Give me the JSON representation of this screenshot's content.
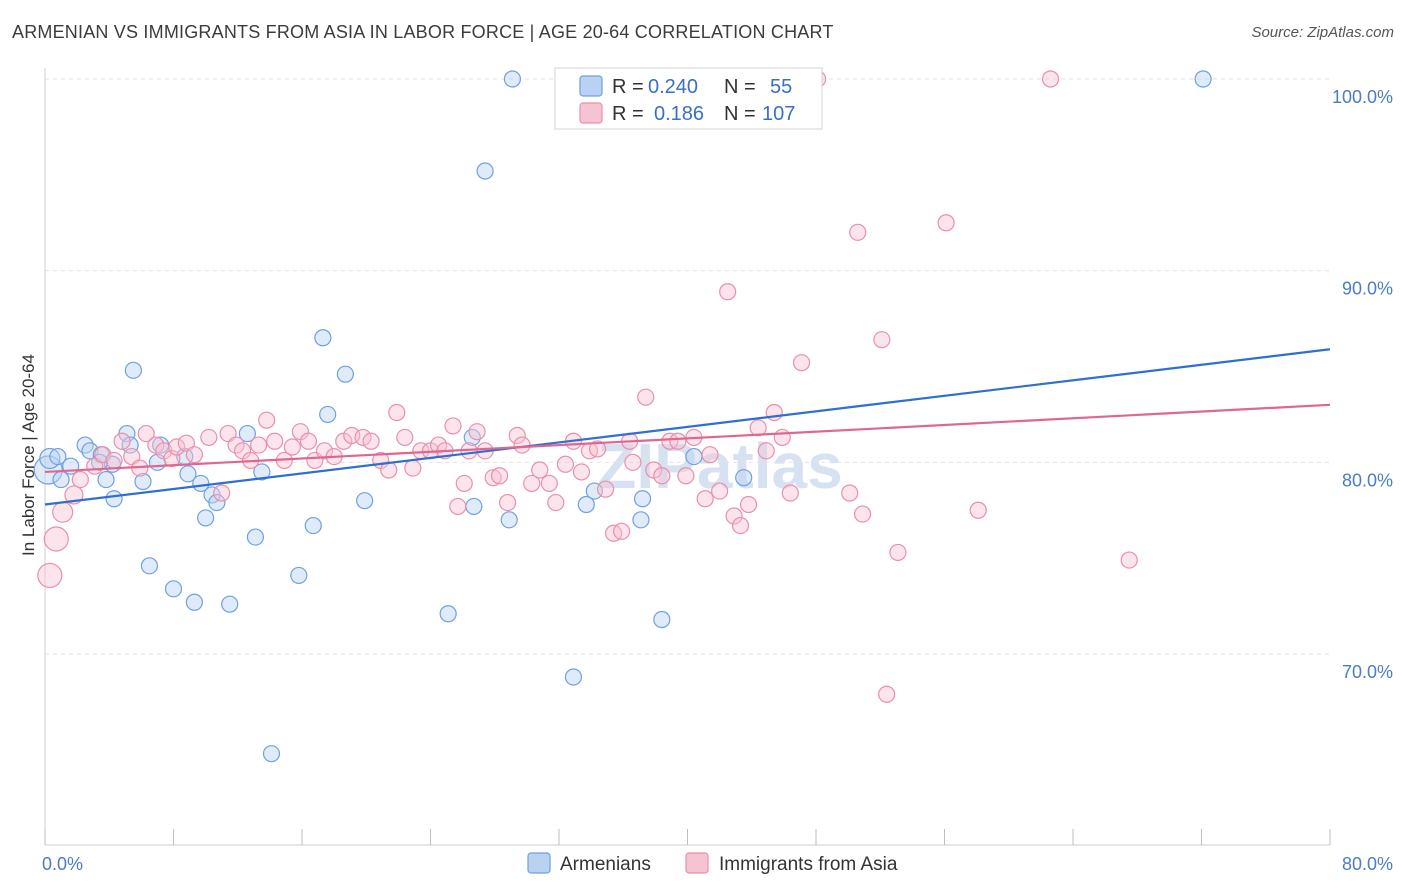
{
  "title": "ARMENIAN VS IMMIGRANTS FROM ASIA IN LABOR FORCE | AGE 20-64 CORRELATION CHART",
  "source": "Source: ZipAtlas.com",
  "watermark": "ZIPatlas",
  "chart_data": {
    "type": "scatter",
    "ylabel": "In Labor Force | Age 20-64",
    "xlim": [
      0,
      80
    ],
    "ylim": [
      60.5,
      102
    ],
    "x_tick_labels": [
      {
        "value": 0,
        "label": "0.0%"
      },
      {
        "value": 80,
        "label": "80.0%"
      }
    ],
    "y_tick_labels": [
      {
        "value": 100,
        "label": "100.0%"
      },
      {
        "value": 90,
        "label": "90.0%"
      },
      {
        "value": 80,
        "label": "80.0%"
      },
      {
        "value": 70,
        "label": "70.0%"
      }
    ],
    "grid": true,
    "legend_position": "top-center",
    "series": [
      {
        "name": "Armenians",
        "color": "#6fa0e0",
        "fill": "#b9d2f2",
        "line_color": "#2f6fd1",
        "R": "0.240",
        "N": "55",
        "trend": [
          [
            0,
            77.8
          ],
          [
            80,
            85.9
          ]
        ],
        "points": [
          [
            0.2,
            79.6,
            14
          ],
          [
            0.3,
            80.2,
            10
          ],
          [
            0.8,
            80.3,
            8
          ],
          [
            1.0,
            79.1,
            8
          ],
          [
            1.6,
            79.8,
            8
          ],
          [
            2.5,
            80.9,
            8
          ],
          [
            2.8,
            80.6,
            8
          ],
          [
            3.5,
            80.4,
            8
          ],
          [
            3.8,
            79.1,
            8
          ],
          [
            4.2,
            79.9,
            8
          ],
          [
            3.4,
            80.0,
            8
          ],
          [
            4.3,
            78.1,
            8
          ],
          [
            5.1,
            81.5,
            8
          ],
          [
            5.3,
            80.9,
            8
          ],
          [
            5.5,
            84.8,
            8
          ],
          [
            6.1,
            79.0,
            8
          ],
          [
            6.5,
            74.6,
            8
          ],
          [
            7.0,
            80.0,
            8
          ],
          [
            7.2,
            80.9,
            8
          ],
          [
            8.0,
            73.4,
            8
          ],
          [
            8.7,
            80.3,
            8
          ],
          [
            8.9,
            79.4,
            8
          ],
          [
            9.3,
            72.7,
            8
          ],
          [
            9.7,
            78.9,
            8
          ],
          [
            10.0,
            77.1,
            8
          ],
          [
            10.4,
            78.3,
            8
          ],
          [
            10.7,
            77.9,
            8
          ],
          [
            11.5,
            72.6,
            8
          ],
          [
            12.6,
            81.5,
            8
          ],
          [
            13.1,
            76.1,
            8
          ],
          [
            13.5,
            79.5,
            8
          ],
          [
            14.1,
            64.8,
            8
          ],
          [
            15.8,
            74.1,
            8
          ],
          [
            16.7,
            76.7,
            8
          ],
          [
            17.3,
            86.5,
            8
          ],
          [
            17.6,
            82.5,
            8
          ],
          [
            18.7,
            84.6,
            8
          ],
          [
            19.9,
            78.0,
            8
          ],
          [
            25.1,
            72.1,
            8
          ],
          [
            26.6,
            81.3,
            8
          ],
          [
            26.7,
            77.7,
            8
          ],
          [
            27.4,
            95.2,
            8
          ],
          [
            28.9,
            77.0,
            8
          ],
          [
            29.1,
            100.0,
            8
          ],
          [
            32.9,
            68.8,
            8
          ],
          [
            33.7,
            77.8,
            8
          ],
          [
            34.2,
            78.5,
            8
          ],
          [
            37.1,
            77.0,
            8
          ],
          [
            37.2,
            78.1,
            8
          ],
          [
            38.4,
            71.8,
            8
          ],
          [
            40.4,
            80.3,
            8
          ],
          [
            43.5,
            79.2,
            8
          ],
          [
            72.1,
            100.0,
            8
          ]
        ]
      },
      {
        "name": "Immigrants from Asia",
        "color": "#ea8fab",
        "fill": "#f6c3d3",
        "line_color": "#e0668f",
        "R": "0.186",
        "N": "107",
        "trend": [
          [
            0,
            79.5
          ],
          [
            80,
            83.0
          ]
        ],
        "points": [
          [
            0.3,
            74.1,
            12
          ],
          [
            0.7,
            76.0,
            12
          ],
          [
            1.1,
            77.4,
            10
          ],
          [
            1.8,
            78.3,
            9
          ],
          [
            2.2,
            79.1,
            8
          ],
          [
            3.1,
            79.8,
            8
          ],
          [
            3.6,
            80.4,
            8
          ],
          [
            4.3,
            80.1,
            8
          ],
          [
            4.8,
            81.1,
            8
          ],
          [
            5.4,
            80.3,
            8
          ],
          [
            5.9,
            79.7,
            8
          ],
          [
            6.3,
            81.5,
            8
          ],
          [
            6.9,
            80.9,
            8
          ],
          [
            7.4,
            80.6,
            8
          ],
          [
            7.9,
            80.2,
            8
          ],
          [
            8.2,
            80.8,
            8
          ],
          [
            8.8,
            81.0,
            8
          ],
          [
            9.3,
            80.4,
            8
          ],
          [
            10.2,
            81.3,
            8
          ],
          [
            11.0,
            78.4,
            8
          ],
          [
            11.4,
            81.5,
            8
          ],
          [
            11.9,
            80.9,
            8
          ],
          [
            12.3,
            80.6,
            8
          ],
          [
            12.8,
            80.1,
            8
          ],
          [
            13.3,
            80.9,
            8
          ],
          [
            13.8,
            82.2,
            8
          ],
          [
            14.3,
            81.1,
            8
          ],
          [
            14.9,
            80.1,
            8
          ],
          [
            15.4,
            80.8,
            8
          ],
          [
            15.9,
            81.6,
            8
          ],
          [
            16.4,
            81.1,
            8
          ],
          [
            16.8,
            80.1,
            8
          ],
          [
            17.4,
            80.6,
            8
          ],
          [
            18.0,
            80.3,
            8
          ],
          [
            18.6,
            81.1,
            8
          ],
          [
            19.1,
            81.4,
            8
          ],
          [
            19.8,
            81.3,
            8
          ],
          [
            20.3,
            81.1,
            8
          ],
          [
            20.9,
            80.1,
            8
          ],
          [
            21.4,
            79.6,
            8
          ],
          [
            21.9,
            82.6,
            8
          ],
          [
            22.4,
            81.3,
            8
          ],
          [
            22.9,
            79.7,
            8
          ],
          [
            23.4,
            80.6,
            8
          ],
          [
            24.0,
            80.6,
            8
          ],
          [
            24.5,
            80.9,
            8
          ],
          [
            24.9,
            80.6,
            8
          ],
          [
            25.4,
            81.9,
            8
          ],
          [
            25.7,
            77.7,
            8
          ],
          [
            26.1,
            78.9,
            8
          ],
          [
            26.4,
            80.6,
            8
          ],
          [
            26.9,
            81.6,
            8
          ],
          [
            27.4,
            80.6,
            8
          ],
          [
            27.9,
            79.2,
            8
          ],
          [
            28.3,
            79.3,
            8
          ],
          [
            28.8,
            77.9,
            8
          ],
          [
            29.4,
            81.4,
            8
          ],
          [
            29.7,
            80.9,
            8
          ],
          [
            30.3,
            78.9,
            8
          ],
          [
            30.8,
            79.6,
            8
          ],
          [
            31.4,
            78.9,
            8
          ],
          [
            31.8,
            77.9,
            8
          ],
          [
            32.4,
            79.9,
            8
          ],
          [
            32.9,
            81.1,
            8
          ],
          [
            33.4,
            79.5,
            8
          ],
          [
            33.9,
            80.6,
            8
          ],
          [
            34.4,
            80.7,
            8
          ],
          [
            34.9,
            78.6,
            8
          ],
          [
            35.4,
            76.3,
            8
          ],
          [
            35.9,
            76.4,
            8
          ],
          [
            36.4,
            81.1,
            8
          ],
          [
            36.6,
            80.0,
            8
          ],
          [
            37.4,
            83.4,
            8
          ],
          [
            37.9,
            79.6,
            8
          ],
          [
            38.4,
            79.3,
            8
          ],
          [
            38.9,
            81.1,
            8
          ],
          [
            39.4,
            81.1,
            8
          ],
          [
            39.9,
            79.3,
            8
          ],
          [
            40.4,
            81.3,
            8
          ],
          [
            41.1,
            78.1,
            8
          ],
          [
            41.4,
            80.4,
            8
          ],
          [
            42.0,
            78.5,
            8
          ],
          [
            42.5,
            88.9,
            8
          ],
          [
            42.9,
            77.2,
            8
          ],
          [
            43.3,
            76.7,
            8
          ],
          [
            43.8,
            77.8,
            8
          ],
          [
            44.4,
            81.8,
            8
          ],
          [
            44.9,
            80.6,
            8
          ],
          [
            45.4,
            82.6,
            8
          ],
          [
            45.9,
            81.3,
            8
          ],
          [
            46.4,
            78.4,
            8
          ],
          [
            47.1,
            85.2,
            8
          ],
          [
            48.1,
            100.0,
            8
          ],
          [
            50.1,
            78.4,
            8
          ],
          [
            50.6,
            92.0,
            8
          ],
          [
            50.9,
            77.3,
            8
          ],
          [
            52.1,
            86.4,
            8
          ],
          [
            52.4,
            67.9,
            8
          ],
          [
            53.1,
            75.3,
            8
          ],
          [
            56.1,
            92.5,
            8
          ],
          [
            58.1,
            77.5,
            8
          ],
          [
            62.6,
            100.0,
            8
          ],
          [
            67.5,
            74.9,
            8
          ]
        ]
      }
    ]
  },
  "legend": {
    "r_label": "R =",
    "n_label": "N ="
  }
}
